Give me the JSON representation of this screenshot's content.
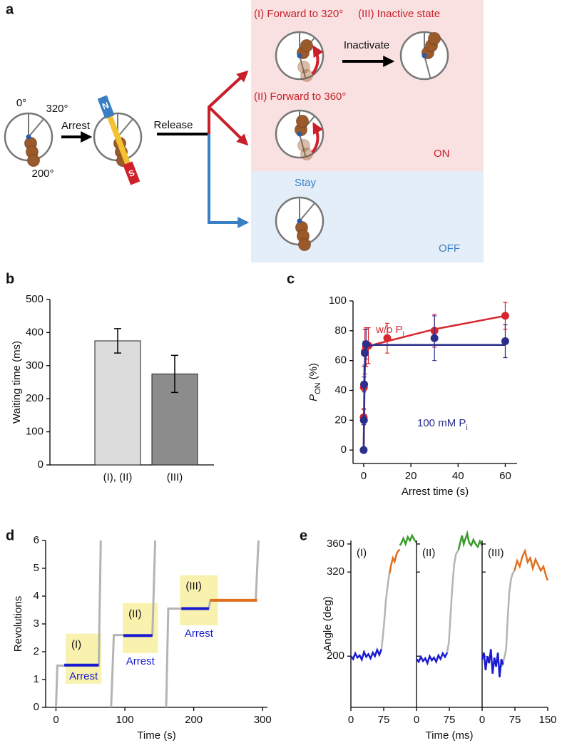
{
  "diagram": {
    "label": "a",
    "angles": [
      "0°",
      "320°",
      "200°"
    ],
    "arrest": "Arrest",
    "magnet": [
      "N",
      "S"
    ],
    "release": "Release",
    "on": {
      "outcomes": [
        "(I) Forward to 320°",
        "(III) Inactive state",
        "(II) Forward to 360°"
      ],
      "inactivate": "Inactivate",
      "state": "ON"
    },
    "off": {
      "outcome": "Stay",
      "state": "OFF"
    }
  },
  "chart_data": [
    {
      "type": "bar",
      "panel": "b",
      "ylabel": "Waiting time (ms)",
      "categories": [
        "(I), (II)",
        "(III)"
      ],
      "values": [
        375,
        275
      ],
      "errors": [
        37,
        56
      ],
      "colors": [
        "#dcdcdc",
        "#8c8c8c"
      ],
      "ylim": [
        0,
        500
      ],
      "yticks": [
        0,
        100,
        200,
        300,
        400,
        500
      ]
    },
    {
      "type": "scatter",
      "panel": "c",
      "xlabel": "Arrest time (s)",
      "ylabel": "P",
      "ylabel_sub": "ON",
      "ylabel_unit": "(%)",
      "xlim": [
        -4.5,
        65
      ],
      "xticks": [
        0,
        20,
        40,
        60
      ],
      "ylim": [
        -9,
        100
      ],
      "yticks": [
        0,
        20,
        40,
        60,
        80,
        100
      ],
      "series": [
        {
          "name": "w/o P",
          "name_sub": "i",
          "color": "#d7262e",
          "x": [
            0,
            0.1,
            0.5,
            1,
            2,
            10,
            30,
            60
          ],
          "values": [
            22,
            42,
            66,
            69,
            70,
            75,
            80,
            90
          ],
          "errors": [
            5,
            14,
            15,
            13,
            12,
            10,
            11,
            9
          ],
          "fit_x": [
            0,
            0.5,
            1,
            2,
            5,
            10,
            20,
            30,
            40,
            50,
            60
          ],
          "fit_values": [
            0,
            55,
            66,
            69,
            71,
            73,
            77,
            81,
            84,
            87,
            90
          ]
        },
        {
          "name": "100 mM P",
          "name_sub": "i",
          "color": "#2b2e8a",
          "x": [
            0,
            0.1,
            0.2,
            0.5,
            1,
            30,
            60
          ],
          "values": [
            0,
            20,
            44,
            65,
            71,
            75,
            73
          ],
          "errors": [
            0,
            3,
            5,
            8,
            10,
            15,
            11
          ],
          "fit_x": [
            0,
            0.3,
            0.6,
            1,
            2,
            5,
            10,
            30,
            60
          ],
          "fit_values": [
            0,
            45,
            62,
            68,
            70,
            70.5,
            70.5,
            70.5,
            70.5
          ]
        }
      ]
    },
    {
      "type": "line",
      "panel": "d",
      "xlabel": "Time (s)",
      "ylabel": "Revolutions",
      "xlim": [
        -15,
        307
      ],
      "xticks": [
        0,
        100,
        200,
        300
      ],
      "ylim": [
        0,
        6
      ],
      "yticks": [
        0,
        1,
        2,
        3,
        4,
        5,
        6
      ],
      "highlights": [
        {
          "label": "(I)",
          "annotation": "Arrest",
          "x": [
            14,
            66
          ],
          "y": [
            0.85,
            2.65
          ]
        },
        {
          "label": "(II)",
          "annotation": "Arrest",
          "x": [
            97,
            148
          ],
          "y": [
            1.95,
            3.75
          ]
        },
        {
          "label": "(III)",
          "annotation": "Arrest",
          "x": [
            180,
            235
          ],
          "y": [
            2.95,
            4.75
          ]
        }
      ],
      "series": [
        {
          "color": "#b4b4b4",
          "x": [
            0,
            2,
            62,
            65,
            null,
            80,
            84,
            140,
            144,
            null,
            160,
            163,
            222,
            224,
            290,
            294
          ],
          "values": [
            0,
            1.5,
            1.5,
            6,
            null,
            0,
            2.6,
            2.6,
            6,
            null,
            0,
            3.55,
            3.55,
            3.85,
            3.85,
            6
          ]
        },
        {
          "color": "#1a1ad0",
          "x": [
            12,
            62,
            null,
            98,
            140,
            null,
            182,
            222
          ],
          "values": [
            1.52,
            1.52,
            null,
            2.58,
            2.58,
            null,
            3.55,
            3.55
          ]
        },
        {
          "color": "#e07020",
          "x": [
            224,
            292
          ],
          "values": [
            3.85,
            3.85
          ]
        }
      ]
    },
    {
      "type": "line",
      "panel": "e",
      "xlabel": "Time (ms)",
      "ylabel": "Angle (deg)",
      "xlim": [
        0,
        150
      ],
      "xticks": [
        0,
        75,
        150
      ],
      "ylim": [
        127,
        365
      ],
      "yticks": [
        200,
        320,
        360
      ],
      "panels": [
        {
          "label": "(I)",
          "series": [
            {
              "color": "#b4b4b4",
              "x": [
                70,
                75,
                80,
                85,
                88,
                92
              ],
              "values": [
                210,
                240,
                280,
                305,
                318,
                325
              ]
            },
            {
              "color": "#1a1ad0",
              "x": [
                0,
                5,
                10,
                15,
                20,
                25,
                30,
                35,
                40,
                45,
                50,
                55,
                60,
                65,
                70
              ],
              "values": [
                200,
                196,
                204,
                198,
                201,
                195,
                206,
                199,
                203,
                197,
                205,
                200,
                209,
                202,
                210
              ]
            },
            {
              "color": "#e07020",
              "x": [
                88,
                92,
                96,
                100,
                104,
                108,
                112
              ],
              "values": [
                318,
                330,
                340,
                335,
                345,
                350,
                352
              ]
            },
            {
              "color": "#3a9a2a",
              "x": [
                112,
                116,
                120,
                125,
                130,
                135,
                140,
                145,
                150
              ],
              "values": [
                358,
                362,
                368,
                360,
                370,
                365,
                372,
                366,
                362
              ]
            }
          ]
        },
        {
          "label": "(II)",
          "series": [
            {
              "color": "#b4b4b4",
              "x": [
                70,
                74,
                78,
                82,
                86,
                90,
                96
              ],
              "values": [
                205,
                220,
                260,
                300,
                330,
                345,
                352
              ]
            },
            {
              "color": "#1a1ad0",
              "x": [
                0,
                5,
                10,
                15,
                20,
                25,
                30,
                35,
                40,
                45,
                50,
                55,
                60,
                65,
                70
              ],
              "values": [
                196,
                192,
                199,
                193,
                197,
                190,
                200,
                194,
                198,
                192,
                201,
                196,
                204,
                199,
                205
              ]
            },
            {
              "color": "#3a9a2a",
              "x": [
                96,
                100,
                104,
                108,
                112,
                116,
                120,
                125,
                130,
                135,
                140,
                145,
                150
              ],
              "values": [
                352,
                362,
                372,
                360,
                368,
                375,
                362,
                358,
                366,
                360,
                356,
                364,
                358
              ]
            }
          ]
        },
        {
          "label": "(III)",
          "series": [
            {
              "color": "#b4b4b4",
              "x": [
                45,
                50,
                55,
                58,
                62,
                66,
                70,
                74
              ],
              "values": [
                185,
                196,
                210,
                250,
                290,
                310,
                318,
                322
              ]
            },
            {
              "color": "#1a1ad0",
              "x": [
                0,
                4,
                8,
                12,
                16,
                20,
                24,
                28,
                32,
                36,
                40,
                44,
                48
              ],
              "values": [
                195,
                205,
                180,
                200,
                190,
                210,
                175,
                198,
                185,
                205,
                170,
                196,
                188
              ]
            },
            {
              "color": "#e07020",
              "x": [
                74,
                80,
                86,
                92,
                98,
                104,
                110,
                116,
                122,
                128,
                134,
                140,
                146,
                150
              ],
              "values": [
                322,
                336,
                328,
                342,
                350,
                334,
                340,
                325,
                338,
                330,
                322,
                328,
                315,
                308
              ]
            }
          ]
        }
      ]
    }
  ]
}
